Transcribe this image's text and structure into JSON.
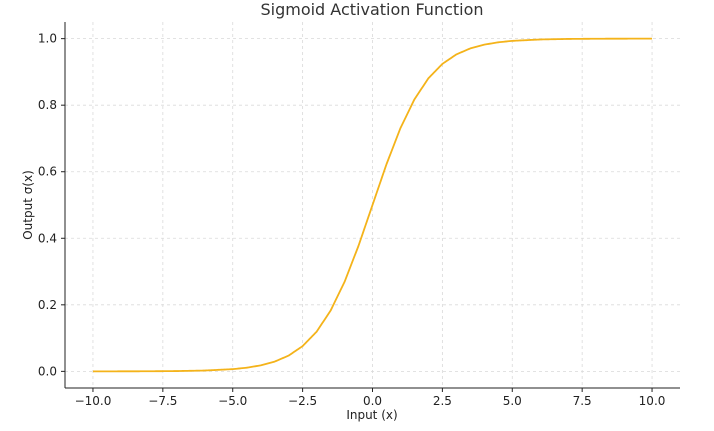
{
  "chart_data": {
    "type": "line",
    "title": "Sigmoid Activation Function",
    "xlabel": "Input (x)",
    "ylabel": "Output σ(x)",
    "xlim": [
      -11,
      11
    ],
    "ylim": [
      -0.05,
      1.05
    ],
    "xticks": [
      -10,
      -7.5,
      -5,
      -2.5,
      0,
      2.5,
      5,
      7.5,
      10
    ],
    "xtick_labels": [
      "−10.0",
      "−7.5",
      "−5.0",
      "−2.5",
      "0.0",
      "2.5",
      "5.0",
      "7.5",
      "10.0"
    ],
    "yticks": [
      0,
      0.2,
      0.4,
      0.6,
      0.8,
      1.0
    ],
    "ytick_labels": [
      "0.0",
      "0.2",
      "0.4",
      "0.6",
      "0.8",
      "1.0"
    ],
    "grid": true,
    "series": [
      {
        "color": "#f4b31a",
        "x": [
          -10,
          -9,
          -8,
          -7,
          -6,
          -5,
          -4.5,
          -4,
          -3.5,
          -3,
          -2.5,
          -2,
          -1.5,
          -1,
          -0.5,
          0,
          0.5,
          1,
          1.5,
          2,
          2.5,
          3,
          3.5,
          4,
          4.5,
          5,
          6,
          7,
          8,
          9,
          10
        ],
        "y": [
          0.0,
          0.0001,
          0.0003,
          0.0009,
          0.0025,
          0.0067,
          0.011,
          0.018,
          0.0293,
          0.0474,
          0.0759,
          0.1192,
          0.1824,
          0.2689,
          0.3775,
          0.5,
          0.6225,
          0.7311,
          0.8176,
          0.8808,
          0.9241,
          0.9526,
          0.9707,
          0.982,
          0.989,
          0.9933,
          0.9975,
          0.9991,
          0.9997,
          0.9999,
          1.0
        ]
      }
    ]
  }
}
